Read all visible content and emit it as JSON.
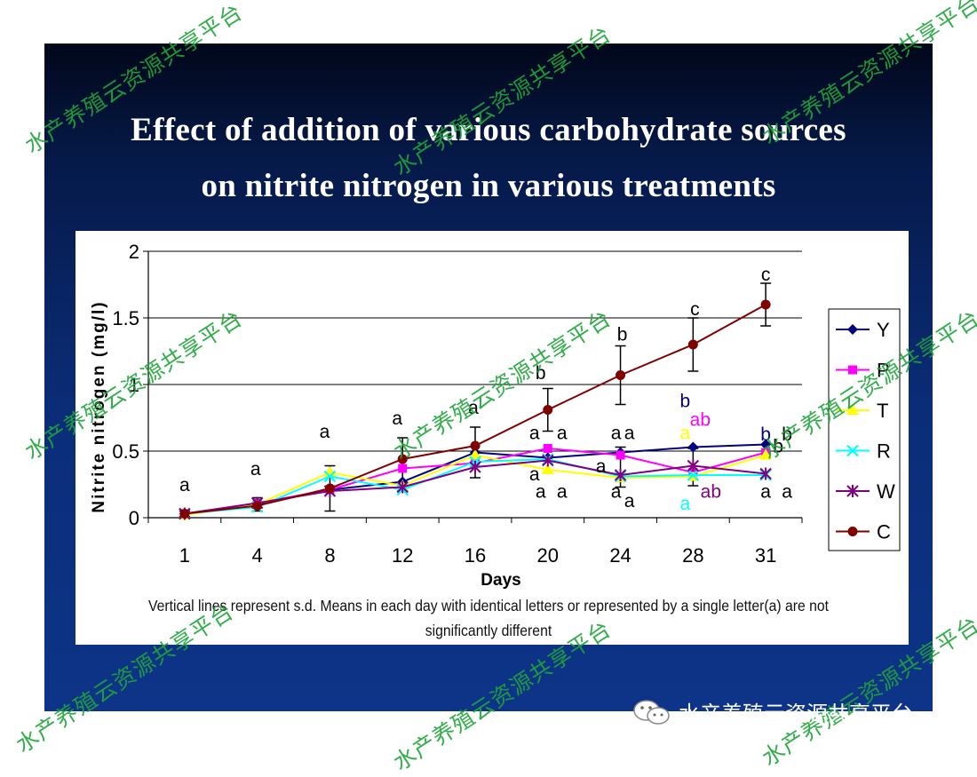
{
  "slide": {
    "title_line1": "Effect of addition of various carbohydrate sources",
    "title_line2": "on nitrite nitrogen in various treatments"
  },
  "footnote": {
    "line1": "Vertical lines represent s.d. Means in each day with identical letters or represented by a single letter(a) are not",
    "line2": "significantly different"
  },
  "watermark": {
    "text": "水产养殖云资源共享平台",
    "color": "#1fa53a"
  },
  "brand": {
    "text": "水产养殖云资源共享平台",
    "icon": "wechat-icon"
  },
  "chart_data": {
    "type": "line",
    "title": "",
    "xlabel": "Days",
    "ylabel": "Nitrite nitrogen (mg/l)",
    "categories": [
      "1",
      "4",
      "8",
      "12",
      "16",
      "20",
      "24",
      "28",
      "31"
    ],
    "ylim": [
      0,
      2
    ],
    "yticks": [
      "0",
      "0.5",
      "1",
      "1.5",
      "2"
    ],
    "grid": true,
    "legend_position": "right",
    "series": [
      {
        "name": "Y",
        "color": "#000080",
        "marker": "diamond",
        "values": [
          0.03,
          0.1,
          0.21,
          0.27,
          0.49,
          0.45,
          0.49,
          0.53,
          0.55
        ]
      },
      {
        "name": "P",
        "color": "#ff00ff",
        "marker": "square",
        "values": [
          0.03,
          0.11,
          0.21,
          0.37,
          0.41,
          0.52,
          0.47,
          0.34,
          0.49
        ]
      },
      {
        "name": "T",
        "color": "#ffff00",
        "marker": "triangle",
        "values": [
          0.02,
          0.1,
          0.34,
          0.24,
          0.47,
          0.36,
          0.3,
          0.31,
          0.47
        ]
      },
      {
        "name": "R",
        "color": "#00ffff",
        "marker": "x",
        "values": [
          0.03,
          0.08,
          0.31,
          0.21,
          0.42,
          0.44,
          0.31,
          0.32,
          0.32
        ]
      },
      {
        "name": "W",
        "color": "#800080",
        "marker": "star",
        "values": [
          0.03,
          0.11,
          0.2,
          0.23,
          0.38,
          0.43,
          0.32,
          0.39,
          0.33
        ]
      },
      {
        "name": "C",
        "color": "#800000",
        "marker": "circle",
        "values": [
          0.03,
          0.09,
          0.22,
          0.44,
          0.54,
          0.81,
          1.07,
          1.3,
          1.6
        ]
      }
    ],
    "error_bars": [
      {
        "x": "1",
        "y": 0.03,
        "sd": 0.02
      },
      {
        "x": "4",
        "y": 0.1,
        "sd": 0.05
      },
      {
        "x": "8",
        "y": 0.22,
        "sd": 0.17
      },
      {
        "x": "12",
        "y": 0.4,
        "sd": 0.2
      },
      {
        "x": "16",
        "y": 0.49,
        "sd": 0.19
      },
      {
        "x": "20",
        "y": 0.81,
        "sd": 0.16
      },
      {
        "x": "24",
        "y": 1.07,
        "sd": 0.22
      },
      {
        "x": "24",
        "y": 0.38,
        "sd": 0.15
      },
      {
        "x": "28",
        "y": 1.3,
        "sd": 0.2
      },
      {
        "x": "28",
        "y": 0.38,
        "sd": 0.14
      },
      {
        "x": "31",
        "y": 1.6,
        "sd": 0.16
      }
    ],
    "annotations": [
      {
        "text": "a",
        "x": "1",
        "y": 0.2,
        "dx": 0,
        "color": "#000000"
      },
      {
        "text": "a",
        "x": "4",
        "y": 0.32,
        "dx": -2,
        "color": "#000000"
      },
      {
        "text": "a",
        "x": "8",
        "y": 0.6,
        "dx": -6,
        "color": "#000000"
      },
      {
        "text": "a",
        "x": "12",
        "y": 0.7,
        "dx": -6,
        "color": "#000000"
      },
      {
        "text": "a",
        "x": "16",
        "y": 0.78,
        "dx": -2,
        "color": "#000000"
      },
      {
        "text": "b",
        "x": "20",
        "y": 1.04,
        "dx": -8,
        "color": "#000000"
      },
      {
        "text": "a",
        "x": "20",
        "y": 0.59,
        "dx": -15,
        "color": "#000000"
      },
      {
        "text": "a",
        "x": "20",
        "y": 0.59,
        "dx": 16,
        "color": "#000000"
      },
      {
        "text": "a",
        "x": "20",
        "y": 0.28,
        "dx": -15,
        "color": "#000000"
      },
      {
        "text": "a",
        "x": "20",
        "y": 0.15,
        "dx": -8,
        "color": "#000000"
      },
      {
        "text": "a",
        "x": "20",
        "y": 0.15,
        "dx": 16,
        "color": "#000000"
      },
      {
        "text": "b",
        "x": "24",
        "y": 1.33,
        "dx": 2,
        "color": "#000000"
      },
      {
        "text": "a",
        "x": "24",
        "y": 0.59,
        "dx": -5,
        "color": "#000000"
      },
      {
        "text": "a",
        "x": "24",
        "y": 0.59,
        "dx": 10,
        "color": "#000000"
      },
      {
        "text": "a",
        "x": "24",
        "y": 0.34,
        "dx": -22,
        "color": "#000000"
      },
      {
        "text": "a",
        "x": "24",
        "y": 0.15,
        "dx": -5,
        "color": "#000000"
      },
      {
        "text": "a",
        "x": "24",
        "y": 0.08,
        "dx": 10,
        "color": "#000000"
      },
      {
        "text": "c",
        "x": "28",
        "y": 1.52,
        "dx": 2,
        "color": "#000000"
      },
      {
        "text": "b",
        "x": "28",
        "y": 0.83,
        "dx": -9,
        "color": "#000080"
      },
      {
        "text": "ab",
        "x": "28",
        "y": 0.69,
        "dx": 8,
        "color": "#ff00ff"
      },
      {
        "text": "a",
        "x": "28",
        "y": 0.59,
        "dx": -9,
        "color": "#ffff00"
      },
      {
        "text": "ab",
        "x": "28",
        "y": 0.15,
        "dx": 20,
        "color": "#800080"
      },
      {
        "text": "a",
        "x": "28",
        "y": 0.06,
        "dx": -9,
        "color": "#00ffff"
      },
      {
        "text": "c",
        "x": "31",
        "y": 1.78,
        "dx": 0,
        "color": "#000000"
      },
      {
        "text": "b",
        "x": "31",
        "y": 0.58,
        "dx": 0,
        "color": "#000080"
      },
      {
        "text": "b",
        "x": "31",
        "y": 0.49,
        "dx": 14,
        "color": "#000000"
      },
      {
        "text": "b",
        "x": "31",
        "y": 0.58,
        "dx": 24,
        "color": "#000000"
      },
      {
        "text": "a",
        "x": "31",
        "y": 0.15,
        "dx": 0,
        "color": "#000000"
      },
      {
        "text": "a",
        "x": "31",
        "y": 0.15,
        "dx": 24,
        "color": "#000000"
      }
    ]
  }
}
